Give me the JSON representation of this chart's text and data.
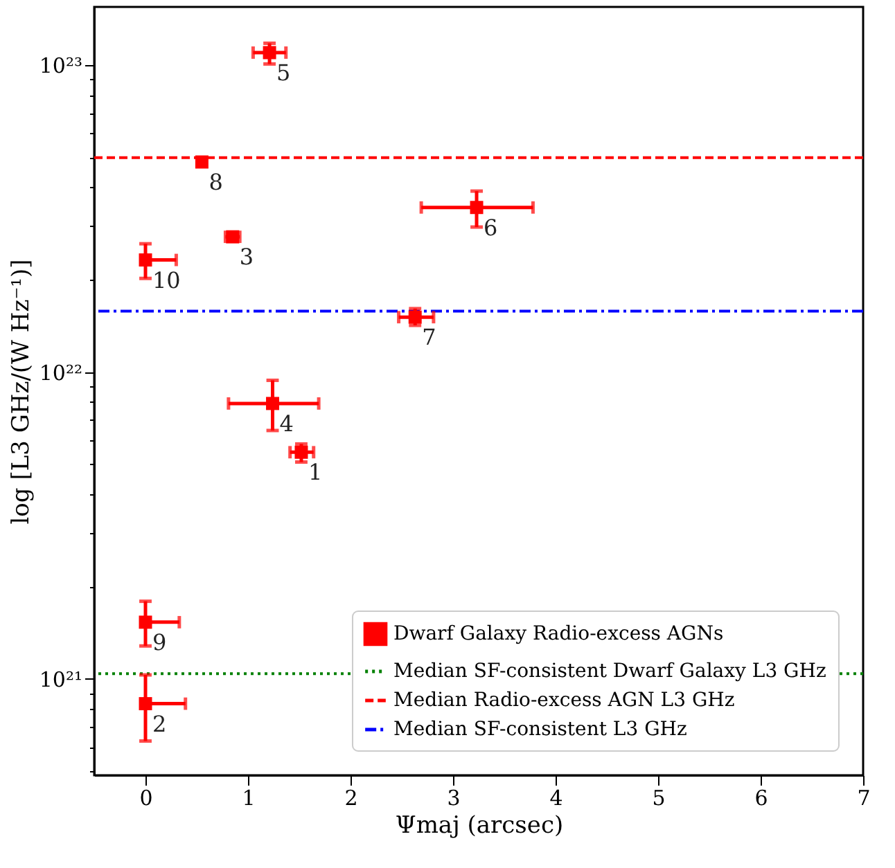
{
  "chart_data": {
    "type": "scatter",
    "xlabel": "Ψmaj (arcsec)",
    "ylabel": "log [L3 GHz/(W Hz⁻¹)]",
    "log": "y",
    "grid": false,
    "legend": "bottom right",
    "marker": "square",
    "xlim": [
      -0.5,
      7
    ],
    "xticks": [
      0,
      1,
      2,
      3,
      4,
      5,
      6,
      7
    ],
    "ylim": [
      4.85e+20,
      1.55e+23
    ],
    "yticks": [
      {
        "value": 5e+20,
        "label": null
      },
      {
        "value": 6e+20,
        "label": null
      },
      {
        "value": 7e+20,
        "label": null
      },
      {
        "value": 8e+20,
        "label": null
      },
      {
        "value": 9e+20,
        "label": null
      },
      {
        "value": 1e+21,
        "label": "10²¹"
      },
      {
        "value": 2e+21,
        "label": null
      },
      {
        "value": 3e+21,
        "label": null
      },
      {
        "value": 4e+21,
        "label": null
      },
      {
        "value": 5e+21,
        "label": null
      },
      {
        "value": 6e+21,
        "label": null
      },
      {
        "value": 7e+21,
        "label": null
      },
      {
        "value": 8e+21,
        "label": null
      },
      {
        "value": 9e+21,
        "label": null
      },
      {
        "value": 1e+22,
        "label": "10²²"
      },
      {
        "value": 2e+22,
        "label": null
      },
      {
        "value": 3e+22,
        "label": null
      },
      {
        "value": 4e+22,
        "label": null
      },
      {
        "value": 5e+22,
        "label": null
      },
      {
        "value": 6e+22,
        "label": null
      },
      {
        "value": 7e+22,
        "label": null
      },
      {
        "value": 8e+22,
        "label": null
      },
      {
        "value": 9e+22,
        "label": null
      },
      {
        "value": 1e+23,
        "label": "10²³"
      }
    ],
    "series": [
      {
        "name": "Dwarf Galaxy Radio-excess AGNs",
        "color": "#ff0000",
        "x": [
          1.52,
          0,
          0.85,
          1.24,
          1.21,
          3.23,
          2.63,
          0.55,
          0,
          0
        ],
        "values": [
          5.48e+21,
          8.3e+20,
          2.76e+22,
          7.9e+21,
          1.1e+23,
          3.44e+22,
          1.51e+22,
          4.84e+22,
          1.53e+21,
          2.32e+22
        ],
        "errors": [
          [
            5.09e+21,
            5.83e+21
          ],
          [
            6.27e+20,
            1.03e+21
          ],
          null,
          [
            6.45e+21,
            9.4e+21
          ],
          [
            1.01e+23,
            1.18e+23
          ],
          [
            2.97e+22,
            3.89e+22
          ],
          [
            1.42e+22,
            1.61e+22
          ],
          null,
          [
            1.28e+21,
            1.79e+21
          ],
          [
            2.02e+22,
            2.62e+22
          ]
        ],
        "xerrors": [
          [
            1.41,
            1.64
          ],
          [
            0,
            0.39
          ],
          [
            0.78,
            0.92
          ],
          [
            0.81,
            1.69
          ],
          [
            1.05,
            1.37
          ],
          [
            2.69,
            3.78
          ],
          [
            2.47,
            2.81
          ],
          null,
          [
            0,
            0.33
          ],
          [
            0,
            0.3
          ]
        ]
      }
    ],
    "ref_lines": [
      {
        "axis": "y",
        "value": 1.04e+21,
        "label": "Median SF-consistent Dwarf Galaxy L3 GHz",
        "color": "#008000",
        "line_style": "dotted"
      },
      {
        "axis": "y",
        "value": 5e+22,
        "label": "Median Radio-excess AGN L3 GHz",
        "color": "#ff0000",
        "line_style": "dashed"
      },
      {
        "axis": "y",
        "value": 1.58e+22,
        "label": "Median SF-consistent L3 GHz",
        "color": "#0000ff",
        "line_style": "dashdot"
      }
    ],
    "annotations": [
      {
        "text": "1",
        "x": 1.52,
        "y": 5.48e+21
      },
      {
        "text": "2",
        "x": 0,
        "y": 8.3e+20
      },
      {
        "text": "3",
        "x": 0.85,
        "y": 2.76e+22
      },
      {
        "text": "4",
        "x": 1.24,
        "y": 7.9e+21
      },
      {
        "text": "5",
        "x": 1.21,
        "y": 1.1e+23
      },
      {
        "text": "6",
        "x": 3.23,
        "y": 3.44e+22
      },
      {
        "text": "7",
        "x": 2.63,
        "y": 1.51e+22
      },
      {
        "text": "8",
        "x": 0.55,
        "y": 4.84e+22
      },
      {
        "text": "9",
        "x": 0,
        "y": 1.53e+21
      },
      {
        "text": "10",
        "x": 0,
        "y": 2.32e+22
      }
    ]
  }
}
